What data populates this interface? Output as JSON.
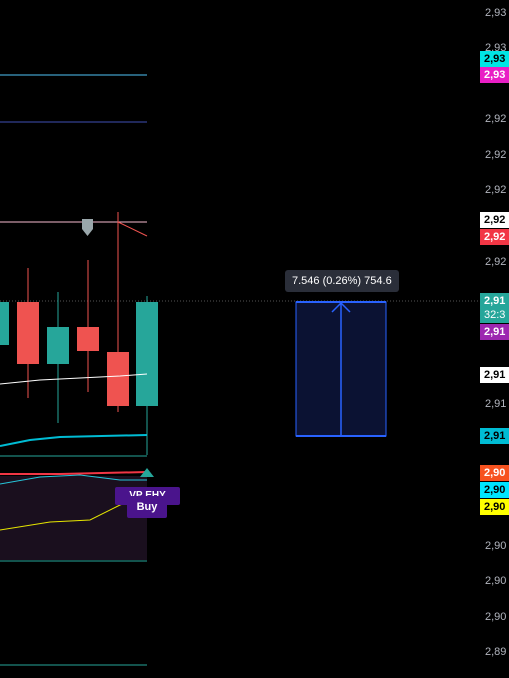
{
  "price_axis": {
    "labels": [
      "2,93",
      "2,93",
      "2,92",
      "2,92",
      "2,92",
      "2,92",
      "2,91",
      "2,90",
      "2,90",
      "2,90",
      "2,89"
    ],
    "badges": [
      {
        "text": "2,93",
        "bg": "#00e5e5",
        "color": "#000"
      },
      {
        "text": "2,93",
        "bg": "#e91ec5",
        "color": "#fff"
      },
      {
        "text": "2,92",
        "bg": "#ffffff",
        "color": "#000"
      },
      {
        "text": "2,92",
        "bg": "#f23645",
        "color": "#fff"
      },
      {
        "text": "2,91",
        "bg": "#26a69a",
        "color": "#fff"
      },
      {
        "text": "32:3",
        "bg": "#26a69a",
        "color": "#fff"
      },
      {
        "text": "2,91",
        "bg": "#9c27b0",
        "color": "#fff"
      },
      {
        "text": "2,91",
        "bg": "#ffffff",
        "color": "#000"
      },
      {
        "text": "2,91",
        "bg": "#00bcd4",
        "color": "#000"
      },
      {
        "text": "2,90",
        "bg": "#f7521f",
        "color": "#fff"
      },
      {
        "text": "2,90",
        "bg": "#00e5ff",
        "color": "#000"
      },
      {
        "text": "2,90",
        "bg": "#ffff00",
        "color": "#000"
      }
    ]
  },
  "measure_tool": {
    "label": "7.546 (0.26%) 754.6"
  },
  "signals": {
    "overlay_label": "VP     EHY",
    "buy_label": "Buy"
  },
  "colors": {
    "up": "#26a69a",
    "down": "#ef5350",
    "measure_fill": "#0b1233",
    "measure_stroke": "#2962ff"
  }
}
